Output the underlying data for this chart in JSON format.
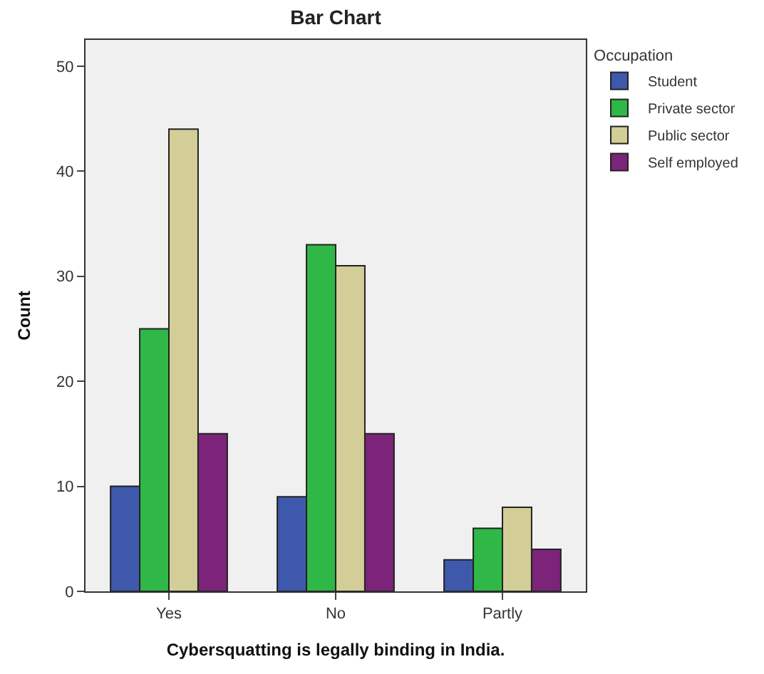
{
  "chart_data": {
    "type": "bar",
    "title": "Bar Chart",
    "xlabel": "Cybersquatting is legally binding in India.",
    "ylabel": "Count",
    "legend_title": "Occupation",
    "legend": "right",
    "grid": false,
    "categories": [
      "Yes",
      "No",
      "Partly"
    ],
    "series": [
      {
        "name": "Student",
        "color": "#3e58ac",
        "values": [
          10,
          9,
          3
        ]
      },
      {
        "name": "Private sector",
        "color": "#2fb847",
        "values": [
          25,
          33,
          6
        ]
      },
      {
        "name": "Public sector",
        "color": "#d3ce97",
        "values": [
          44,
          31,
          8
        ]
      },
      {
        "name": "Self employed",
        "color": "#7b2479",
        "values": [
          15,
          15,
          4
        ]
      }
    ],
    "ylim": [
      0,
      52.5
    ],
    "yticks": [
      0,
      10,
      20,
      30,
      40,
      50
    ]
  }
}
